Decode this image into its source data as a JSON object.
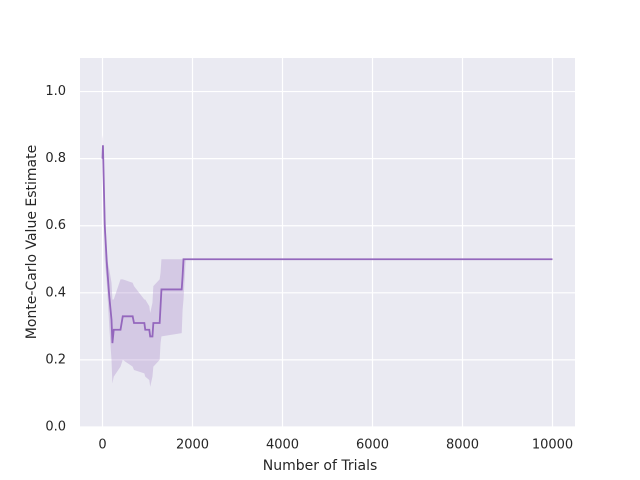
{
  "chart_data": {
    "type": "line",
    "xlabel": "Number of Trials",
    "ylabel": "Monte-Carlo Value Estimate",
    "x": [
      0,
      10,
      50,
      100,
      150,
      200,
      220,
      250,
      400,
      450,
      670,
      700,
      930,
      950,
      1040,
      1060,
      1110,
      1130,
      1270,
      1290,
      1310,
      1760,
      1780,
      1800,
      1850,
      10000
    ],
    "values": [
      0.8,
      0.84,
      0.6,
      0.48,
      0.39,
      0.32,
      0.25,
      0.29,
      0.29,
      0.33,
      0.33,
      0.31,
      0.31,
      0.29,
      0.29,
      0.27,
      0.27,
      0.31,
      0.31,
      0.36,
      0.41,
      0.41,
      0.45,
      0.5,
      0.5,
      0.5
    ],
    "lower": [
      0.74,
      0.78,
      0.5,
      0.42,
      0.3,
      0.2,
      0.13,
      0.15,
      0.18,
      0.2,
      0.18,
      0.17,
      0.16,
      0.15,
      0.14,
      0.12,
      0.15,
      0.18,
      0.2,
      0.25,
      0.27,
      0.28,
      0.35,
      0.38,
      0.5,
      0.5
    ],
    "upper": [
      0.87,
      0.86,
      0.68,
      0.5,
      0.47,
      0.43,
      0.38,
      0.38,
      0.44,
      0.44,
      0.43,
      0.42,
      0.38,
      0.38,
      0.36,
      0.34,
      0.37,
      0.42,
      0.44,
      0.46,
      0.5,
      0.5,
      0.5,
      0.5,
      0.5,
      0.5
    ],
    "color": "#9467bd",
    "xlim": [
      -500,
      10500
    ],
    "ylim": [
      0,
      1.1
    ],
    "xticks": [
      0,
      2000,
      4000,
      6000,
      8000,
      10000
    ],
    "yticks": [
      {
        "value": 0,
        "label": "0.0"
      },
      0.2,
      0.4,
      0.6,
      0.8,
      {
        "value": 1,
        "label": "1.0"
      }
    ],
    "grid": true
  }
}
